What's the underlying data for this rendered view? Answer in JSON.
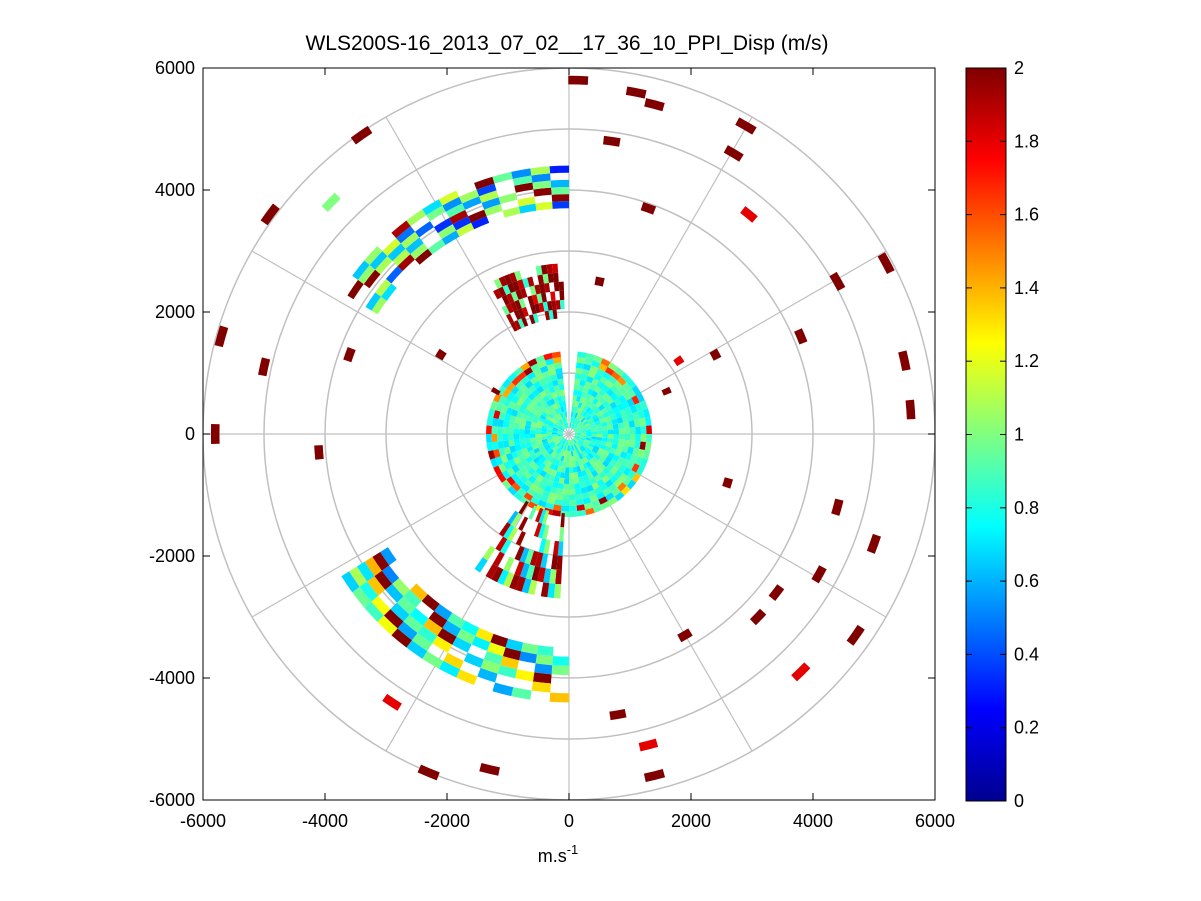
{
  "chart_data": {
    "type": "heatmap",
    "subtype": "polar-ppi",
    "title": "WLS200S-16_2013_07_02__17_36_10_PPI_Disp (m/s)",
    "xlabel_base": "m.s",
    "xlabel_exp": "-1",
    "xlim": [
      -6000,
      6000
    ],
    "ylim": [
      -6000,
      6000
    ],
    "x_ticks": [
      -6000,
      -4000,
      -2000,
      0,
      2000,
      4000,
      6000
    ],
    "y_ticks": [
      6000,
      4000,
      2000,
      0,
      -2000,
      -4000,
      -6000
    ],
    "x_tick_labels": [
      "-6000",
      "-4000",
      "-2000",
      "0",
      "2000",
      "4000",
      "6000"
    ],
    "y_tick_labels": [
      "6000",
      "4000",
      "2000",
      "0",
      "-2000",
      "-4000",
      "-6000"
    ],
    "polar_rings": [
      1000,
      2000,
      3000,
      4000,
      5000,
      6000
    ],
    "polar_spokes_deg": [
      0,
      30,
      60,
      90,
      120,
      150,
      180,
      210,
      240,
      270,
      300,
      330
    ],
    "grid": true,
    "colormap": "jet",
    "colorbar": {
      "min": 0,
      "max": 2,
      "ticks": [
        0,
        0.2,
        0.4,
        0.6,
        0.8,
        1,
        1.2,
        1.4,
        1.6,
        1.8,
        2
      ],
      "tick_labels": [
        "0",
        "0.2",
        "0.4",
        "0.6",
        "0.8",
        "1",
        "1.2",
        "1.4",
        "1.6",
        "1.8",
        "2"
      ]
    },
    "near_field": {
      "r_max": 1350,
      "typical_value": 0.85,
      "notch_az_deg": [
        355,
        5
      ]
    },
    "arcs": [
      {
        "name": "nw-arc",
        "az_deg": [
          302,
          360
        ],
        "r": [
          3700,
          4400
        ],
        "values": [
          1.0,
          0.6,
          1.1,
          0.4,
          2.0
        ]
      },
      {
        "name": "sw-arc",
        "az_deg": [
          180,
          238
        ],
        "r": [
          3500,
          4400
        ],
        "values": [
          1.3,
          0.8,
          1.0,
          0.6,
          2.0
        ]
      },
      {
        "name": "nnw-cluster",
        "az_deg": [
          332,
          358
        ],
        "r": [
          1900,
          2800
        ],
        "values": [
          2.0,
          1.9,
          0.9,
          2.0
        ]
      },
      {
        "name": "ssw-cluster",
        "az_deg": [
          183,
          215
        ],
        "r": [
          1300,
          2700
        ],
        "values": [
          2.0,
          1.0,
          0.7,
          1.9
        ]
      }
    ],
    "scatter": [
      {
        "x": 150,
        "y": 5800,
        "v": 2.0
      },
      {
        "x": 1100,
        "y": 5600,
        "v": 2.0
      },
      {
        "x": 1400,
        "y": 5400,
        "v": 2.0
      },
      {
        "x": 2900,
        "y": 5050,
        "v": 2.0
      },
      {
        "x": 2700,
        "y": 4600,
        "v": 2.0
      },
      {
        "x": 2950,
        "y": 3600,
        "v": 1.8
      },
      {
        "x": 4400,
        "y": 2500,
        "v": 2.0
      },
      {
        "x": 5200,
        "y": 2800,
        "v": 2.0
      },
      {
        "x": 3800,
        "y": 1600,
        "v": 2.0
      },
      {
        "x": 5500,
        "y": 1200,
        "v": 2.0
      },
      {
        "x": 5600,
        "y": 400,
        "v": 2.0
      },
      {
        "x": 4400,
        "y": -1200,
        "v": 2.0
      },
      {
        "x": 5000,
        "y": -1800,
        "v": 2.0
      },
      {
        "x": 4100,
        "y": -2300,
        "v": 2.0
      },
      {
        "x": 4700,
        "y": -3300,
        "v": 2.0
      },
      {
        "x": 3800,
        "y": -3900,
        "v": 1.8
      },
      {
        "x": 3100,
        "y": -3000,
        "v": 2.0
      },
      {
        "x": 1900,
        "y": -3300,
        "v": 2.0
      },
      {
        "x": 800,
        "y": -4600,
        "v": 2.0
      },
      {
        "x": 1300,
        "y": -5100,
        "v": 1.8
      },
      {
        "x": 1400,
        "y": -5600,
        "v": 2.0
      },
      {
        "x": -1300,
        "y": -5500,
        "v": 2.0
      },
      {
        "x": -2300,
        "y": -5550,
        "v": 2.0
      },
      {
        "x": -2900,
        "y": -4400,
        "v": 1.8
      },
      {
        "x": -4100,
        "y": -300,
        "v": 2.0
      },
      {
        "x": -5800,
        "y": 0,
        "v": 2.0
      },
      {
        "x": -5700,
        "y": 1600,
        "v": 2.0
      },
      {
        "x": -5000,
        "y": 1100,
        "v": 2.0
      },
      {
        "x": -3600,
        "y": 1300,
        "v": 2.0
      },
      {
        "x": -3400,
        "y": 4900,
        "v": 2.0
      },
      {
        "x": -3900,
        "y": 3800,
        "v": 1.0
      },
      {
        "x": -4900,
        "y": 3600,
        "v": 2.0
      },
      {
        "x": -2100,
        "y": 1300,
        "v": 2.0
      },
      {
        "x": -1200,
        "y": 700,
        "v": 2.0
      },
      {
        "x": 1800,
        "y": 1200,
        "v": 1.8
      },
      {
        "x": 2400,
        "y": 1300,
        "v": 2.0
      },
      {
        "x": 1600,
        "y": 700,
        "v": 2.0
      },
      {
        "x": 2600,
        "y": -800,
        "v": 2.0
      },
      {
        "x": 3400,
        "y": -2600,
        "v": 2.0
      },
      {
        "x": 500,
        "y": 2500,
        "v": 2.0
      },
      {
        "x": 1300,
        "y": 3700,
        "v": 2.0
      },
      {
        "x": 700,
        "y": 4800,
        "v": 2.0
      }
    ]
  }
}
